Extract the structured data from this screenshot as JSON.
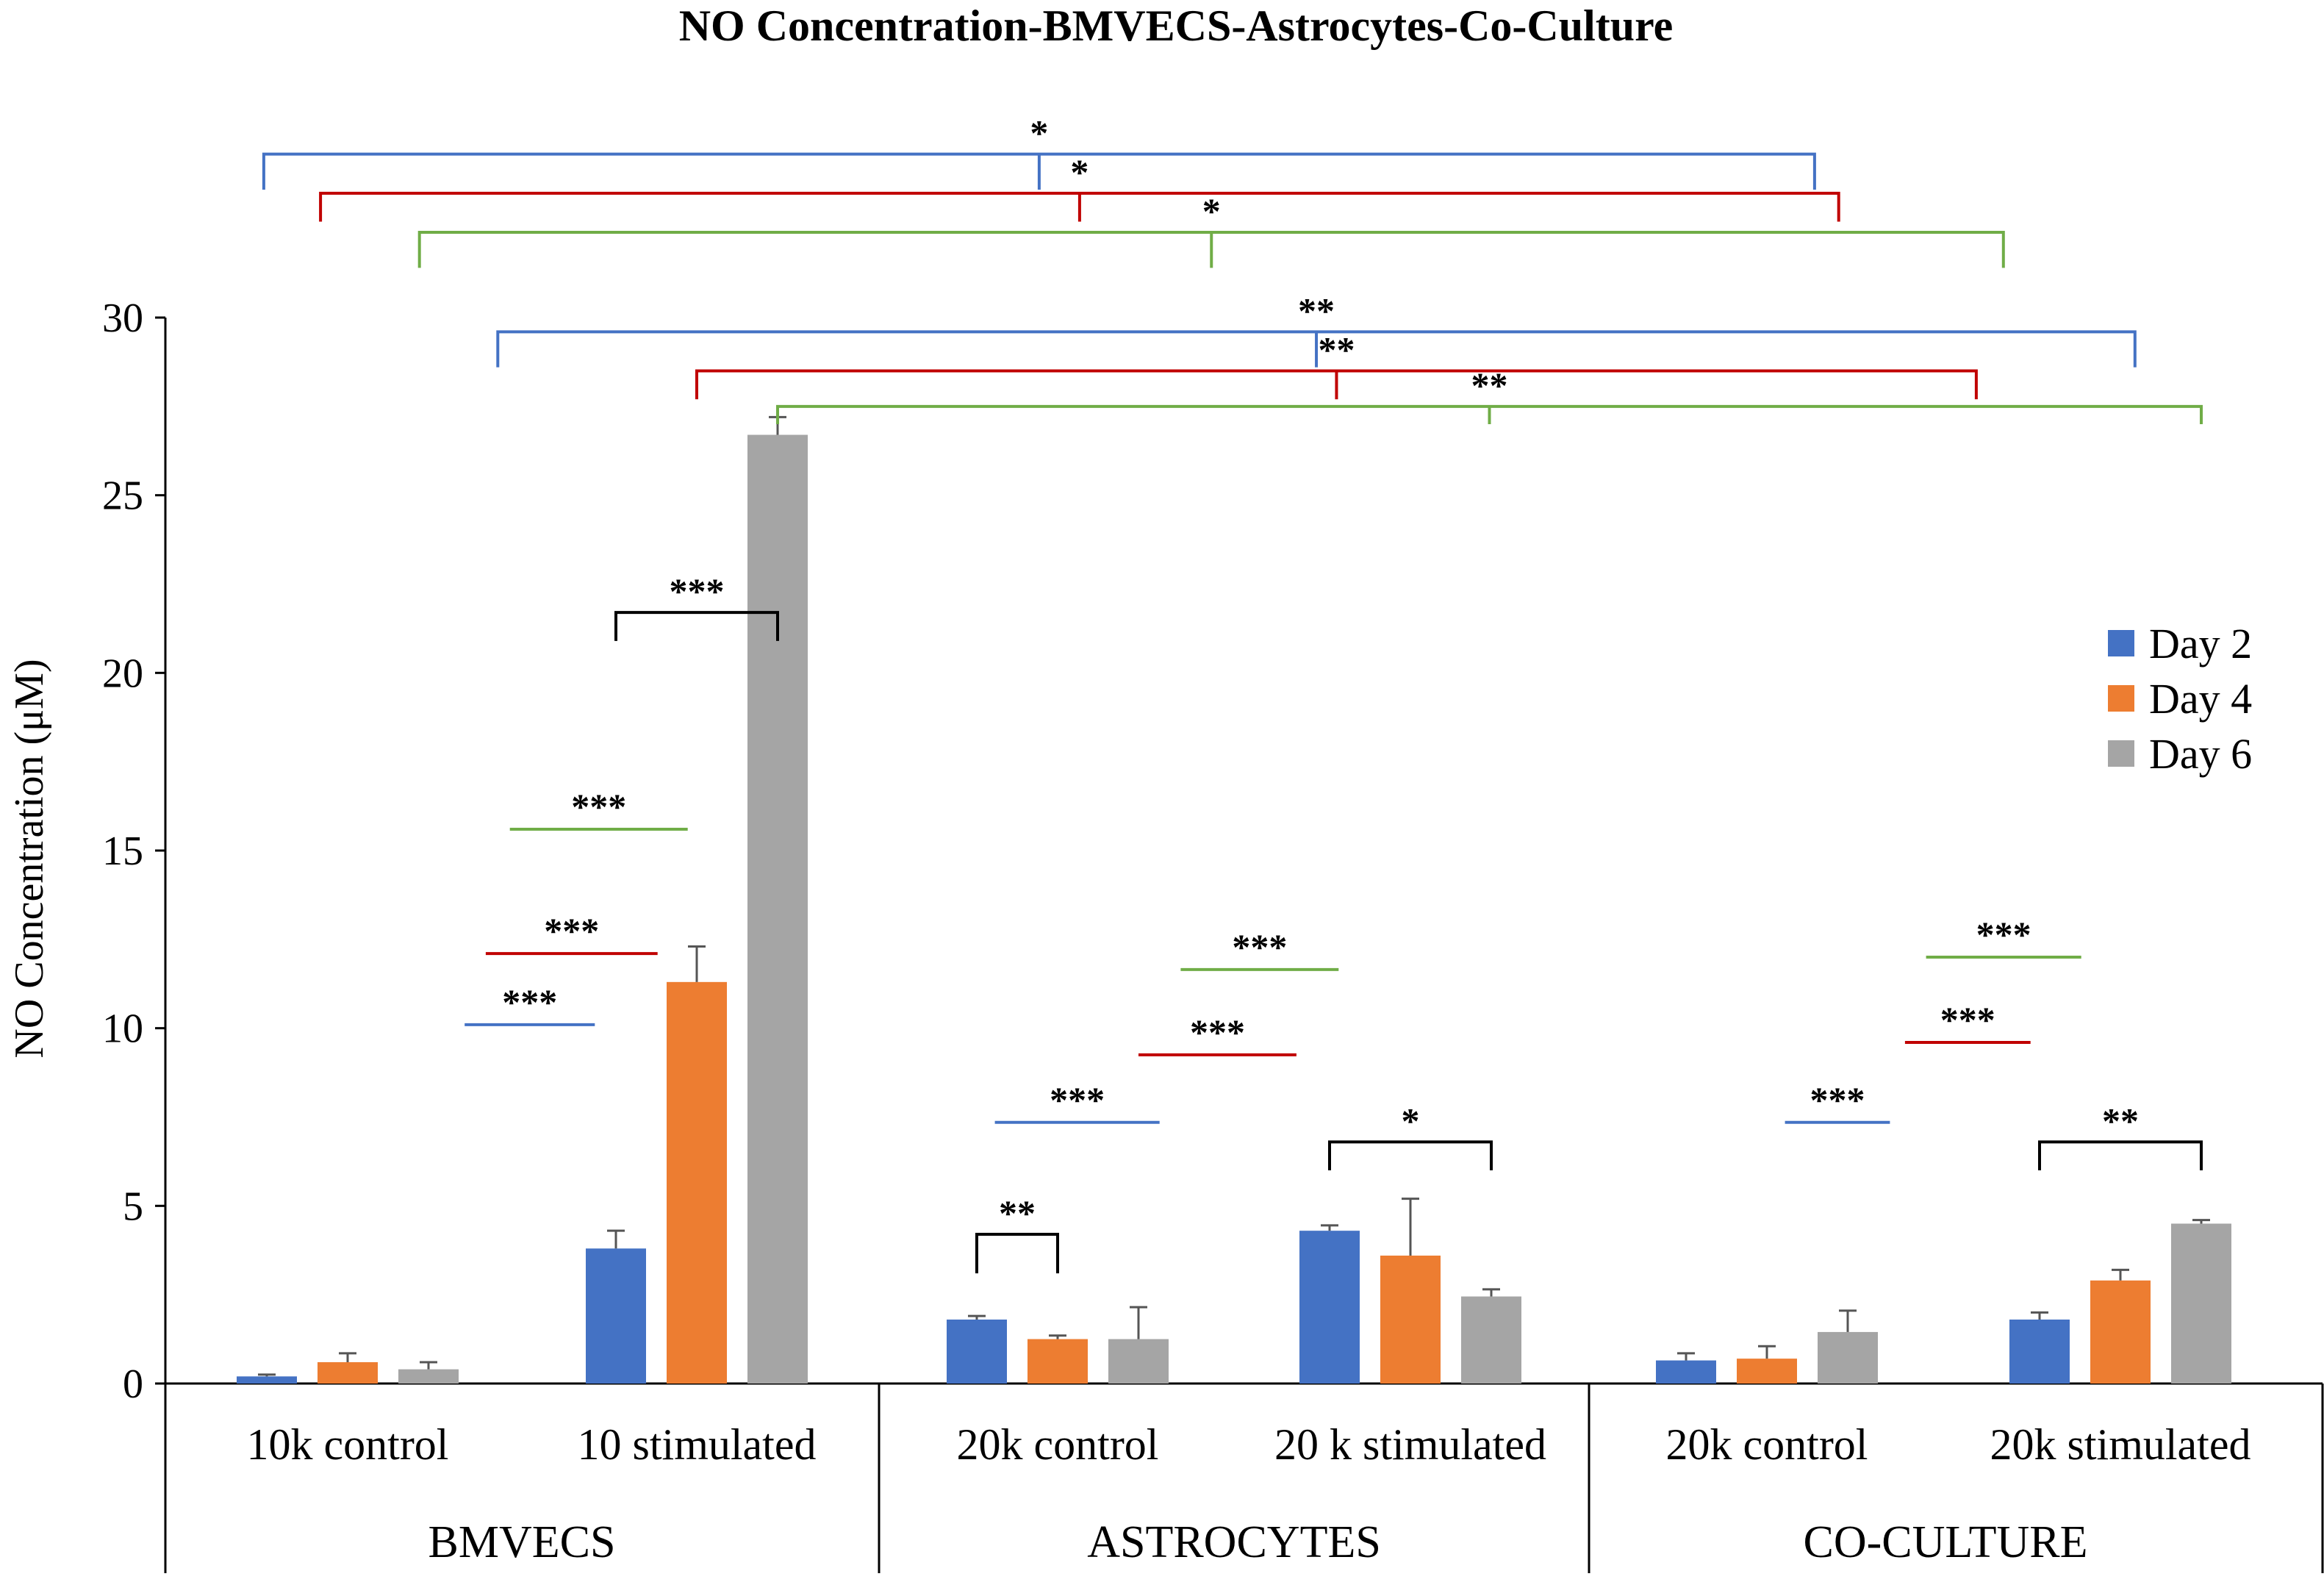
{
  "chart_data": {
    "type": "bar",
    "title": "NO Concentration-BMVECS-Astrocytes-Co-Culture",
    "xlabel": "",
    "ylabel": "NO Concentration (μM)",
    "ylim": [
      0,
      30
    ],
    "yticks": [
      "0",
      "5",
      "10",
      "15",
      "20",
      "25",
      "30"
    ],
    "categories": [
      "10k control",
      "10 stimulated",
      "20k control",
      "20 k stimulated",
      "20k control",
      "20k stimulated"
    ],
    "groups": [
      {
        "label": "BMVECS",
        "categories": [
          0,
          1
        ]
      },
      {
        "label": "ASTROCYTES",
        "categories": [
          2,
          3
        ]
      },
      {
        "label": "CO-CULTURE",
        "categories": [
          4,
          5
        ]
      }
    ],
    "series": [
      {
        "name": "Day 2",
        "color": "#4472C4",
        "values": [
          0.2,
          3.8,
          1.8,
          4.3,
          0.65,
          1.8
        ],
        "errors": [
          0.05,
          0.5,
          0.1,
          0.15,
          0.2,
          0.2
        ]
      },
      {
        "name": "Day 4",
        "color": "#ED7D31",
        "values": [
          0.6,
          11.3,
          1.25,
          3.6,
          0.7,
          2.9
        ],
        "errors": [
          0.25,
          1.0,
          0.1,
          1.6,
          0.35,
          0.3
        ]
      },
      {
        "name": "Day 6",
        "color": "#A5A5A5",
        "values": [
          0.4,
          26.7,
          1.25,
          2.45,
          1.45,
          4.5
        ],
        "errors": [
          0.2,
          0.5,
          0.9,
          0.2,
          0.6,
          0.1
        ]
      }
    ],
    "legend_position": "right",
    "significance_lines": [
      {
        "label": "***",
        "color": "#4472C4",
        "y": 10.1,
        "from": {
          "cat": 0,
          "bar": 2,
          "offset": 1.2
        },
        "to": {
          "cat": 1,
          "bar": 0,
          "offset": -0.7
        }
      },
      {
        "label": "***",
        "color": "#C00000",
        "y": 12.1,
        "from": {
          "cat": 0,
          "bar": 2,
          "offset": 1.9
        },
        "to": {
          "cat": 1,
          "bar": 1,
          "offset": -1.3
        }
      },
      {
        "label": "***",
        "color": "#70AD47",
        "y": 15.6,
        "from": {
          "cat": 0,
          "bar": 2,
          "offset": 2.7
        },
        "to": {
          "cat": 1,
          "bar": 1,
          "offset": -0.3
        }
      },
      {
        "label": "***",
        "color": "#4472C4",
        "y": 7.35,
        "from": {
          "cat": 2,
          "bar": 0,
          "offset": 0.6
        },
        "to": {
          "cat": 2,
          "bar": 2,
          "offset": 0.7
        }
      },
      {
        "label": "***",
        "color": "#C00000",
        "y": 9.25,
        "from": {
          "cat": 2,
          "bar": 2,
          "offset": 0.0
        },
        "to": {
          "cat": 3,
          "bar": 0,
          "offset": -1.1
        }
      },
      {
        "label": "***",
        "color": "#70AD47",
        "y": 11.65,
        "from": {
          "cat": 2,
          "bar": 2,
          "offset": 1.4
        },
        "to": {
          "cat": 3,
          "bar": 0,
          "offset": 0.3
        }
      },
      {
        "label": "***",
        "color": "#4472C4",
        "y": 7.35,
        "from": {
          "cat": 4,
          "bar": 1,
          "offset": 0.6
        },
        "to": {
          "cat": 4,
          "bar": 2,
          "offset": 1.4
        }
      },
      {
        "label": "***",
        "color": "#C00000",
        "y": 9.6,
        "from": {
          "cat": 4,
          "bar": 2,
          "offset": 1.9
        },
        "to": {
          "cat": 5,
          "bar": 0,
          "offset": -0.3
        }
      },
      {
        "label": "***",
        "color": "#70AD47",
        "y": 12.0,
        "from": {
          "cat": 4,
          "bar": 2,
          "offset": 2.6
        },
        "to": {
          "cat": 5,
          "bar": 1,
          "offset": -1.3
        }
      }
    ],
    "significance_brackets": [
      {
        "label": "***",
        "color": "#000000",
        "y": 21.7,
        "drop": 0.8,
        "from": {
          "cat": 1,
          "bar": 0
        },
        "to": {
          "cat": 1,
          "bar": 2
        }
      },
      {
        "label": "**",
        "color": "#000000",
        "y": 4.2,
        "drop": 1.1,
        "from": {
          "cat": 2,
          "bar": 0
        },
        "to": {
          "cat": 2,
          "bar": 1
        }
      },
      {
        "label": "*",
        "color": "#000000",
        "y": 6.8,
        "drop": 0.8,
        "from": {
          "cat": 3,
          "bar": 0
        },
        "to": {
          "cat": 3,
          "bar": 2
        }
      },
      {
        "label": "**",
        "color": "#000000",
        "y": 6.8,
        "drop": 0.8,
        "from": {
          "cat": 5,
          "bar": 0
        },
        "to": {
          "cat": 5,
          "bar": 2
        }
      },
      {
        "label": "**",
        "color": "#4472C4",
        "y": 29.6,
        "drop": 1.0,
        "from": {
          "cat": 0,
          "bar": 2,
          "offset": 2.3
        },
        "to": {
          "cat": 5,
          "bar": 2,
          "offset": -2.2
        }
      },
      {
        "label": "**",
        "color": "#C00000",
        "y": 28.5,
        "drop": 0.8,
        "from": {
          "cat": 1,
          "bar": 1,
          "offset": 0.0
        },
        "to": {
          "cat": 5,
          "bar": 0,
          "offset": -2.1
        }
      },
      {
        "label": "**",
        "color": "#70AD47",
        "y": 27.5,
        "drop": 0.5,
        "from": {
          "cat": 1,
          "bar": 2,
          "offset": 0.0
        },
        "to": {
          "cat": 5,
          "bar": 2,
          "offset": 0.0
        }
      },
      {
        "label": "*",
        "color": "#4472C4",
        "y": 34.6,
        "drop": 1.0,
        "from": {
          "cat": 0,
          "bar": 0,
          "offset": -0.1
        },
        "to": {
          "cat": 4,
          "bar": 2,
          "offset": -1.1
        }
      },
      {
        "label": "*",
        "color": "#C00000",
        "y": 33.5,
        "drop": 0.8,
        "from": {
          "cat": 0,
          "bar": 1,
          "offset": -0.9
        },
        "to": {
          "cat": 4,
          "bar": 2,
          "offset": -0.3
        }
      },
      {
        "label": "*",
        "color": "#70AD47",
        "y": 32.4,
        "drop": 1.0,
        "from": {
          "cat": 0,
          "bar": 2,
          "offset": -0.3
        },
        "to": {
          "cat": 5,
          "bar": 0,
          "offset": -1.2
        }
      }
    ]
  }
}
